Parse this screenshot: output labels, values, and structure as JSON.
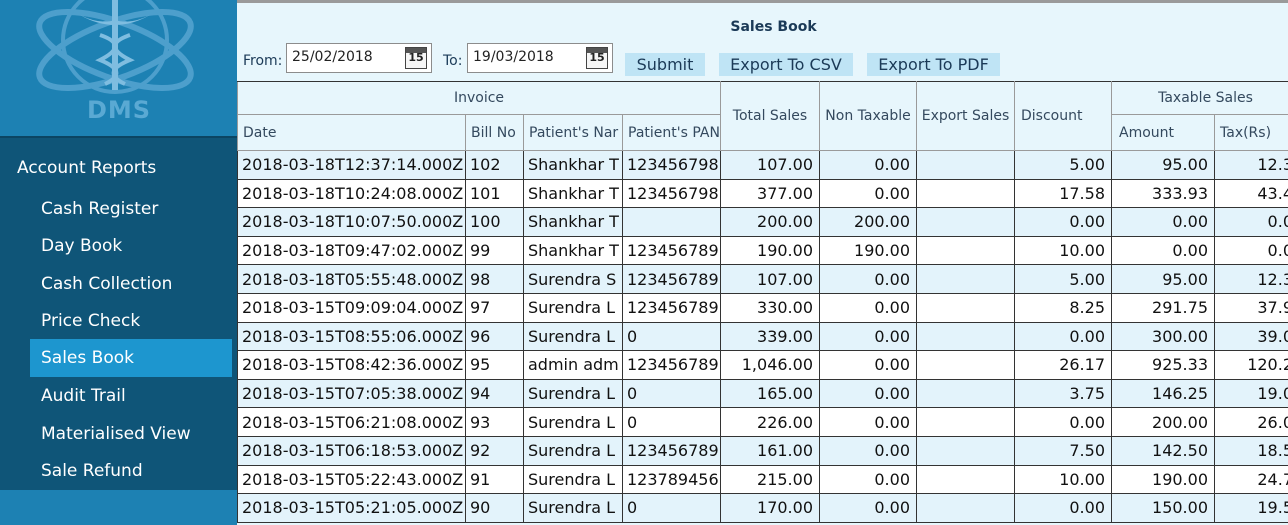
{
  "sidebar": {
    "logo_text": "DMS",
    "menu_title": "Account Reports",
    "items": [
      {
        "label": "Cash Register"
      },
      {
        "label": "Day Book"
      },
      {
        "label": "Cash Collection"
      },
      {
        "label": "Price Check"
      },
      {
        "label": "Sales Book"
      },
      {
        "label": "Audit Trail"
      },
      {
        "label": "Materialised View"
      },
      {
        "label": "Sale Refund"
      }
    ],
    "active_item": "Sales Book"
  },
  "main": {
    "title": "Sales Book",
    "from_label": "From:",
    "to_label": "To:",
    "from_value": "25/02/2018",
    "to_value": "19/03/2018",
    "calendar_day": "15",
    "submit_label": "Submit",
    "export_csv_label": "Export To CSV",
    "export_pdf_label": "Export To PDF"
  },
  "table": {
    "group_headers": {
      "invoice": "Invoice",
      "total_sales": "Total Sales",
      "non_taxable": "Non Taxable",
      "export_sales": "Export Sales",
      "discount": "Discount",
      "taxable_sales": "Taxable Sales"
    },
    "sub_headers": {
      "date": "Date",
      "bill_no": "Bill No",
      "patient_name": "Patient's Nar",
      "patient_pan": "Patient's PAN",
      "amount": "Amount",
      "tax": "Tax(Rs)"
    },
    "rows": [
      {
        "date": "2018-03-18T12:37:14.000Z",
        "bill": "102",
        "name": "Shankhar  T",
        "pan": "123456798",
        "total": "107.00",
        "nontax": "0.00",
        "export": "",
        "discount": "5.00",
        "amount": "95.00",
        "tax": "12.3"
      },
      {
        "date": "2018-03-18T10:24:08.000Z",
        "bill": "101",
        "name": "Shankhar  T",
        "pan": "123456798",
        "total": "377.00",
        "nontax": "0.00",
        "export": "",
        "discount": "17.58",
        "amount": "333.93",
        "tax": "43.4"
      },
      {
        "date": "2018-03-18T10:07:50.000Z",
        "bill": "100",
        "name": "Shankhar  T",
        "pan": "",
        "total": "200.00",
        "nontax": "200.00",
        "export": "",
        "discount": "0.00",
        "amount": "0.00",
        "tax": "0.0"
      },
      {
        "date": "2018-03-18T09:47:02.000Z",
        "bill": "99",
        "name": "Shankhar  T",
        "pan": "123456789",
        "total": "190.00",
        "nontax": "190.00",
        "export": "",
        "discount": "10.00",
        "amount": "0.00",
        "tax": "0.0"
      },
      {
        "date": "2018-03-18T05:55:48.000Z",
        "bill": "98",
        "name": "Surendra  S",
        "pan": "123456789",
        "total": "107.00",
        "nontax": "0.00",
        "export": "",
        "discount": "5.00",
        "amount": "95.00",
        "tax": "12.3"
      },
      {
        "date": "2018-03-15T09:09:04.000Z",
        "bill": "97",
        "name": "Surendra  L",
        "pan": "123456789",
        "total": "330.00",
        "nontax": "0.00",
        "export": "",
        "discount": "8.25",
        "amount": "291.75",
        "tax": "37.9"
      },
      {
        "date": "2018-03-15T08:55:06.000Z",
        "bill": "96",
        "name": "Surendra  L",
        "pan": "0",
        "total": "339.00",
        "nontax": "0.00",
        "export": "",
        "discount": "0.00",
        "amount": "300.00",
        "tax": "39.0"
      },
      {
        "date": "2018-03-15T08:42:36.000Z",
        "bill": "95",
        "name": "admin adm",
        "pan": "123456789",
        "total": "1,046.00",
        "nontax": "0.00",
        "export": "",
        "discount": "26.17",
        "amount": "925.33",
        "tax": "120.2"
      },
      {
        "date": "2018-03-15T07:05:38.000Z",
        "bill": "94",
        "name": "Surendra  L",
        "pan": "0",
        "total": "165.00",
        "nontax": "0.00",
        "export": "",
        "discount": "3.75",
        "amount": "146.25",
        "tax": "19.0"
      },
      {
        "date": "2018-03-15T06:21:08.000Z",
        "bill": "93",
        "name": "Surendra  L",
        "pan": "0",
        "total": "226.00",
        "nontax": "0.00",
        "export": "",
        "discount": "0.00",
        "amount": "200.00",
        "tax": "26.0"
      },
      {
        "date": "2018-03-15T06:18:53.000Z",
        "bill": "92",
        "name": "Surendra  L",
        "pan": "123456789",
        "total": "161.00",
        "nontax": "0.00",
        "export": "",
        "discount": "7.50",
        "amount": "142.50",
        "tax": "18.5"
      },
      {
        "date": "2018-03-15T05:22:43.000Z",
        "bill": "91",
        "name": "Surendra  L",
        "pan": "123789456",
        "total": "215.00",
        "nontax": "0.00",
        "export": "",
        "discount": "10.00",
        "amount": "190.00",
        "tax": "24.7"
      },
      {
        "date": "2018-03-15T05:21:05.000Z",
        "bill": "90",
        "name": "Surendra  L",
        "pan": "0",
        "total": "170.00",
        "nontax": "0.00",
        "export": "",
        "discount": "0.00",
        "amount": "150.00",
        "tax": "19.5"
      }
    ]
  },
  "colors": {
    "sidebar": "#1d81b3",
    "menu": "#0f5578",
    "menu_active": "#1d96cf",
    "main_bg": "#e7f6fc",
    "button": "#bfe4f5",
    "row_alt": "#e3f3fb"
  },
  "icons": {
    "logo": "caduceus-logo-icon",
    "calendar": "calendar-icon"
  }
}
